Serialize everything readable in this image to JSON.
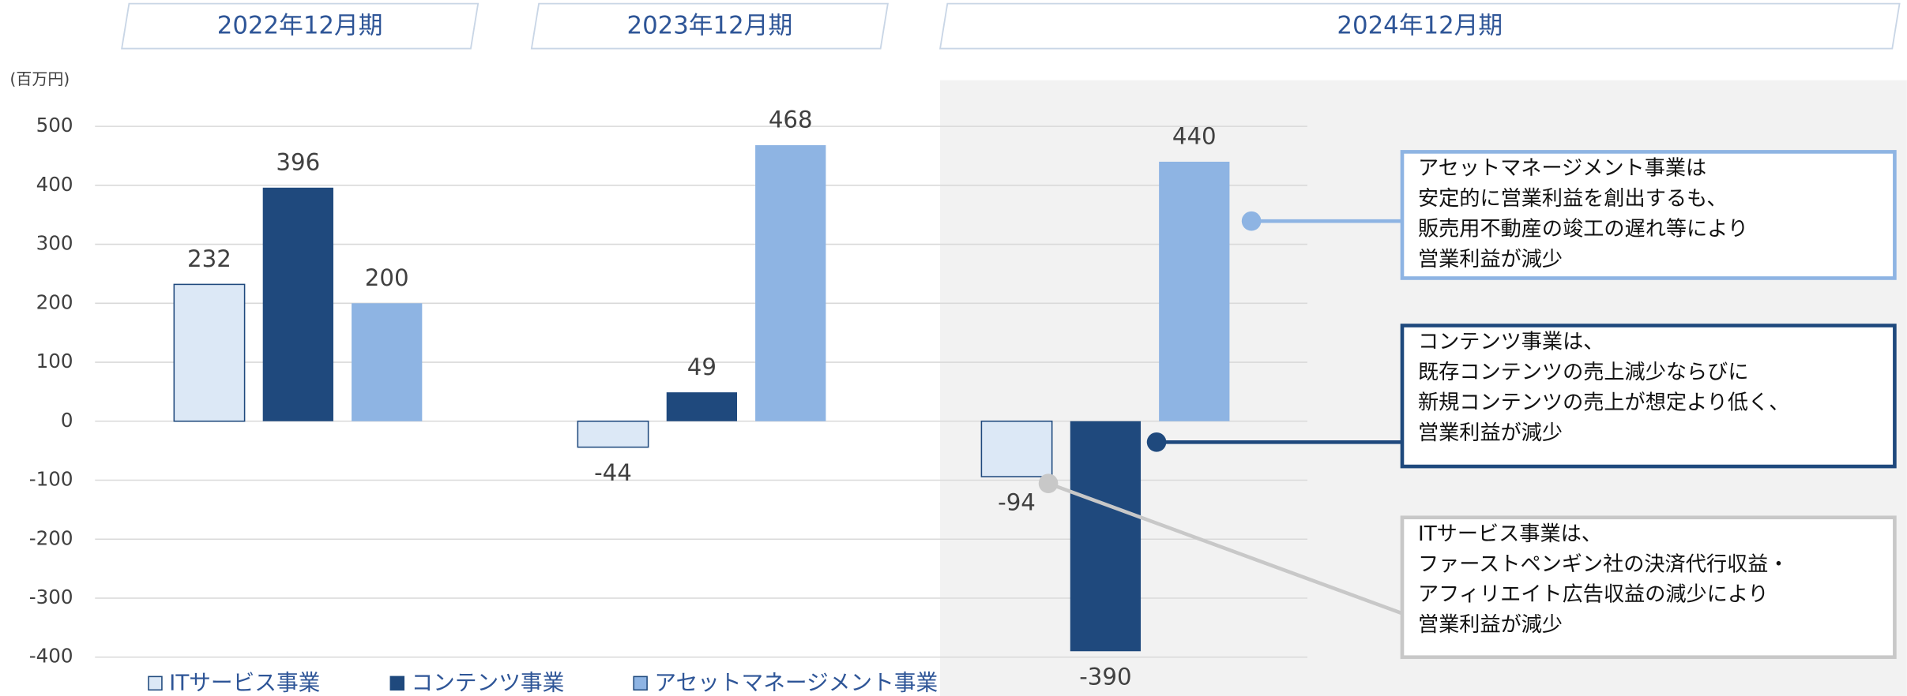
{
  "chart_data": {
    "type": "bar",
    "y_unit": "(百万円)",
    "categories": [
      "2022年12月期",
      "2023年12月期",
      "2024年12月期"
    ],
    "series": [
      {
        "name": "ITサービス事業",
        "color": "#dce8f6",
        "values": [
          232,
          -44,
          -94
        ]
      },
      {
        "name": "コンテンツ事業",
        "color": "#1f497d",
        "values": [
          396,
          49,
          -390
        ]
      },
      {
        "name": "アセットマネージメント事業",
        "color": "#8eb4e3",
        "values": [
          200,
          468,
          440
        ]
      }
    ],
    "ylim": [
      -400,
      500
    ],
    "yticks": [
      -400,
      -300,
      -200,
      -100,
      0,
      100,
      200,
      300,
      400,
      500
    ],
    "grid": true,
    "annotations": [
      {
        "color": "#8eb4e3",
        "lines": [
          "アセットマネージメント事業は",
          "安定的に営業利益を創出するも、",
          "販売用不動産の竣工の遅れ等により",
          "営業利益が減少"
        ]
      },
      {
        "color": "#1f497d",
        "lines": [
          "コンテンツ事業は、",
          "既存コンテンツの売上減少ならびに",
          "新規コンテンツの売上が想定より低く、",
          "営業利益が減少"
        ]
      },
      {
        "color": "#c8c8c8",
        "lines": [
          "ITサービス事業は、",
          "ファーストペンギン社の決済代行収益・",
          "アフィリエイト広告収益の減少により",
          "営業利益が減少"
        ]
      }
    ]
  }
}
